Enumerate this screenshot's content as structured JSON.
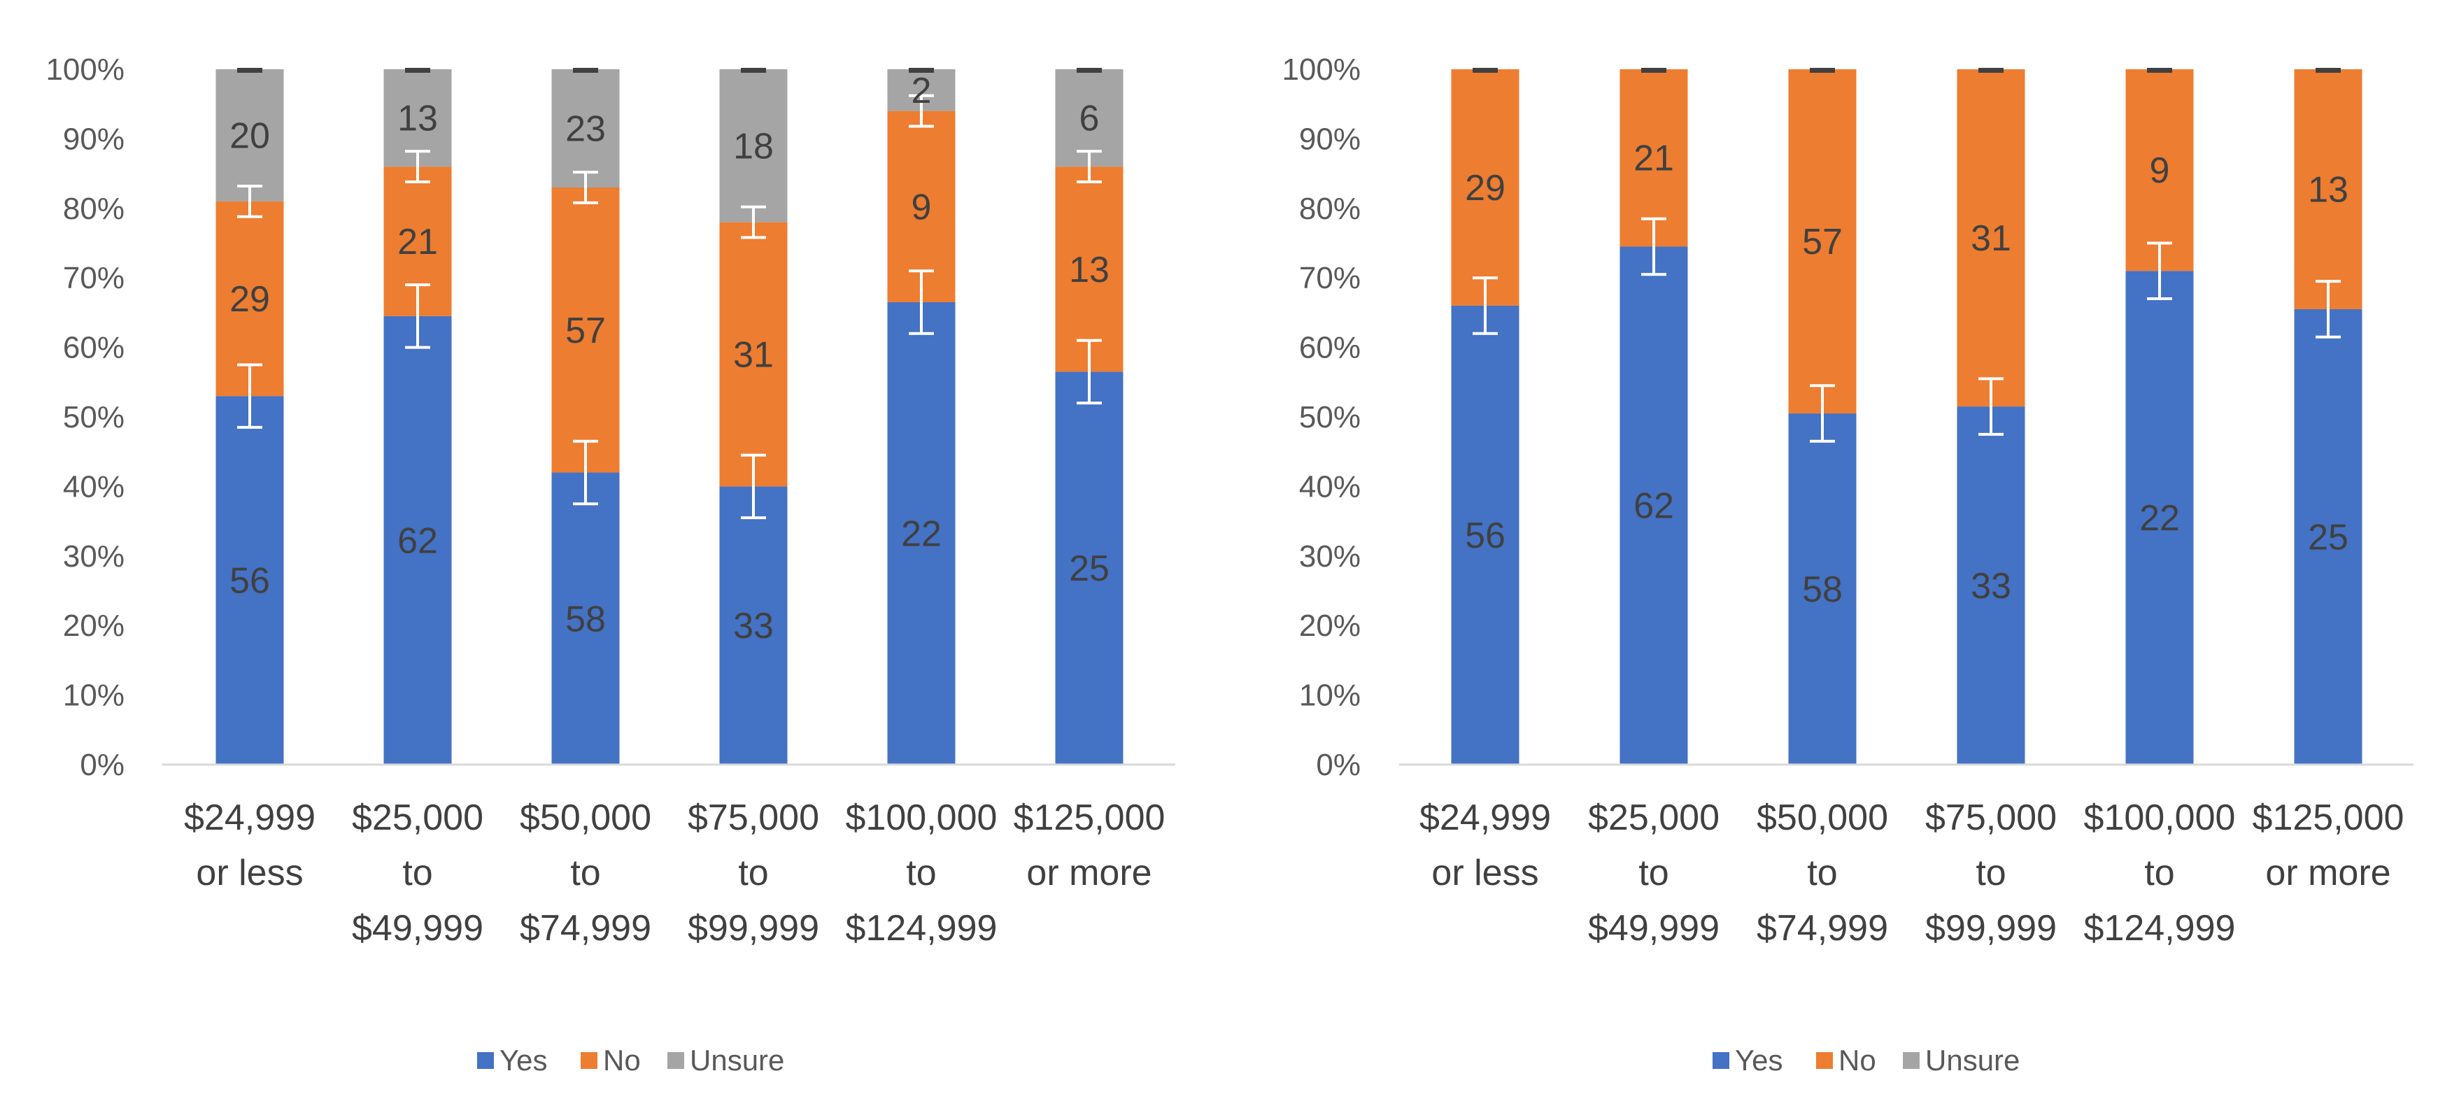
{
  "chart_data": [
    {
      "type": "bar",
      "stacked": true,
      "categories": [
        [
          "$24,999",
          "or less"
        ],
        [
          "$25,000",
          "to",
          "$49,999"
        ],
        [
          "$50,000",
          "to",
          "$74,999"
        ],
        [
          "$75,000",
          "to",
          "$99,999"
        ],
        [
          "$100,000",
          "to",
          "$124,999"
        ],
        [
          "$125,000",
          "or more"
        ]
      ],
      "yticks": [
        "0%",
        "10%",
        "20%",
        "30%",
        "40%",
        "50%",
        "60%",
        "70%",
        "80%",
        "90%",
        "100%"
      ],
      "ylim": [
        0,
        100
      ],
      "grid": false,
      "legend": "bottom",
      "error_bars": true,
      "series": [
        {
          "name": "Yes",
          "color": "#4472C4",
          "values": [
            53,
            64.5,
            42,
            40,
            66.5,
            56.5
          ],
          "labels": [
            "56",
            "62",
            "58",
            "33",
            "22",
            "25"
          ],
          "error": 4.5
        },
        {
          "name": "No",
          "color": "#ED7D31",
          "values": [
            28,
            21.5,
            41,
            38,
            27.5,
            29.5
          ],
          "labels": [
            "29",
            "21",
            "57",
            "31",
            "9",
            "13"
          ],
          "error": 2.2
        },
        {
          "name": "Unsure",
          "color": "#A5A5A5",
          "values": [
            19,
            14,
            17,
            22,
            6,
            14
          ],
          "labels": [
            "20",
            "13",
            "23",
            "18",
            "2",
            "6"
          ],
          "error": 0.3
        }
      ]
    },
    {
      "type": "bar",
      "stacked": true,
      "categories": [
        [
          "$24,999",
          "or less"
        ],
        [
          "$25,000",
          "to",
          "$49,999"
        ],
        [
          "$50,000",
          "to",
          "$74,999"
        ],
        [
          "$75,000",
          "to",
          "$99,999"
        ],
        [
          "$100,000",
          "to",
          "$124,999"
        ],
        [
          "$125,000",
          "or more"
        ]
      ],
      "yticks": [
        "0%",
        "10%",
        "20%",
        "30%",
        "40%",
        "50%",
        "60%",
        "70%",
        "80%",
        "90%",
        "100%"
      ],
      "ylim": [
        0,
        100
      ],
      "grid": false,
      "legend": "bottom",
      "error_bars": true,
      "series": [
        {
          "name": "Yes",
          "color": "#4472C4",
          "values": [
            66,
            74.5,
            50.5,
            51.5,
            71,
            65.5
          ],
          "labels": [
            "56",
            "62",
            "58",
            "33",
            "22",
            "25"
          ],
          "error": 4
        },
        {
          "name": "No",
          "color": "#ED7D31",
          "values": [
            34,
            25.5,
            49.5,
            48.5,
            29,
            34.5
          ],
          "labels": [
            "29",
            "21",
            "57",
            "31",
            "9",
            "13"
          ],
          "error": 0.3
        },
        {
          "name": "Unsure",
          "color": "#A5A5A5",
          "values": [
            0,
            0,
            0,
            0,
            0,
            0
          ],
          "labels": [
            "",
            "",
            "",
            "",
            "",
            ""
          ],
          "error": 0
        }
      ]
    }
  ]
}
